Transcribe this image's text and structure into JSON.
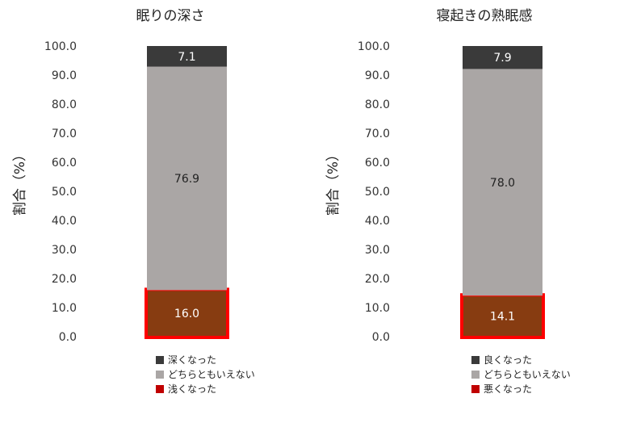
{
  "colors": {
    "top": "#3a3a3a",
    "middle": "#aaa6a5",
    "bottom": "#873c11",
    "highlight": "#ff0000"
  },
  "chart_data": [
    {
      "type": "bar",
      "stacked": true,
      "title": "眠りの深さ",
      "ylabel": "割合（%）",
      "ylim": [
        0,
        100
      ],
      "yticks": [
        "0.0",
        "10.0",
        "20.0",
        "30.0",
        "40.0",
        "50.0",
        "60.0",
        "70.0",
        "80.0",
        "90.0",
        "100.0"
      ],
      "series": [
        {
          "name": "深くなった",
          "value": 7.1,
          "label": "7.1",
          "color_key": "top"
        },
        {
          "name": "どちらともいえない",
          "value": 76.9,
          "label": "76.9",
          "color_key": "middle"
        },
        {
          "name": "浅くなった",
          "value": 16.0,
          "label": "16.0",
          "color_key": "bottom",
          "highlighted": true
        }
      ],
      "legend_order": [
        0,
        1,
        2
      ],
      "grid": false
    },
    {
      "type": "bar",
      "stacked": true,
      "title": "寝起きの熟眠感",
      "ylabel": "割合（%）",
      "ylim": [
        0,
        100
      ],
      "yticks": [
        "0.0",
        "10.0",
        "20.0",
        "30.0",
        "40.0",
        "50.0",
        "60.0",
        "70.0",
        "80.0",
        "90.0",
        "100.0"
      ],
      "series": [
        {
          "name": "良くなった",
          "value": 7.9,
          "label": "7.9",
          "color_key": "top"
        },
        {
          "name": "どちらともいえない",
          "value": 78.0,
          "label": "78.0",
          "color_key": "middle"
        },
        {
          "name": "悪くなった",
          "value": 14.1,
          "label": "14.1",
          "color_key": "bottom",
          "highlighted": true
        }
      ],
      "legend_order": [
        0,
        1,
        2
      ],
      "grid": false
    }
  ],
  "legend_swatch_colors": [
    "#3a3a3a",
    "#aaa6a5",
    "#c00000"
  ]
}
